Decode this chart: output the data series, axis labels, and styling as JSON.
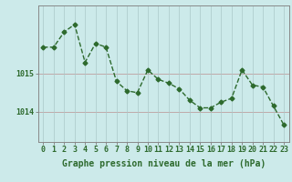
{
  "x": [
    0,
    1,
    2,
    3,
    4,
    5,
    6,
    7,
    8,
    9,
    10,
    11,
    12,
    13,
    14,
    15,
    16,
    17,
    18,
    19,
    20,
    21,
    22,
    23
  ],
  "y": [
    1015.7,
    1015.7,
    1016.1,
    1016.3,
    1015.3,
    1015.8,
    1015.7,
    1014.8,
    1014.55,
    1014.5,
    1015.1,
    1014.85,
    1014.75,
    1014.6,
    1014.3,
    1014.1,
    1014.1,
    1014.25,
    1014.35,
    1015.1,
    1014.7,
    1014.65,
    1014.15,
    1013.65
  ],
  "line_color": "#2d6a2d",
  "bg_color": "#cceaea",
  "grid_color_h": "#c0a8a8",
  "grid_color_v": "#aac8c8",
  "xlabel": "Graphe pression niveau de la mer (hPa)",
  "yticks": [
    1014,
    1015
  ],
  "ylim": [
    1013.2,
    1016.8
  ],
  "xlim": [
    -0.5,
    23.5
  ],
  "xtick_labels": [
    "0",
    "1",
    "2",
    "3",
    "4",
    "5",
    "6",
    "7",
    "8",
    "9",
    "10",
    "11",
    "12",
    "13",
    "14",
    "15",
    "16",
    "17",
    "18",
    "19",
    "20",
    "21",
    "22",
    "23"
  ],
  "marker": "D",
  "markersize": 2.5,
  "linewidth": 1.0,
  "tick_fontsize": 6.0,
  "xlabel_fontsize": 7.0
}
